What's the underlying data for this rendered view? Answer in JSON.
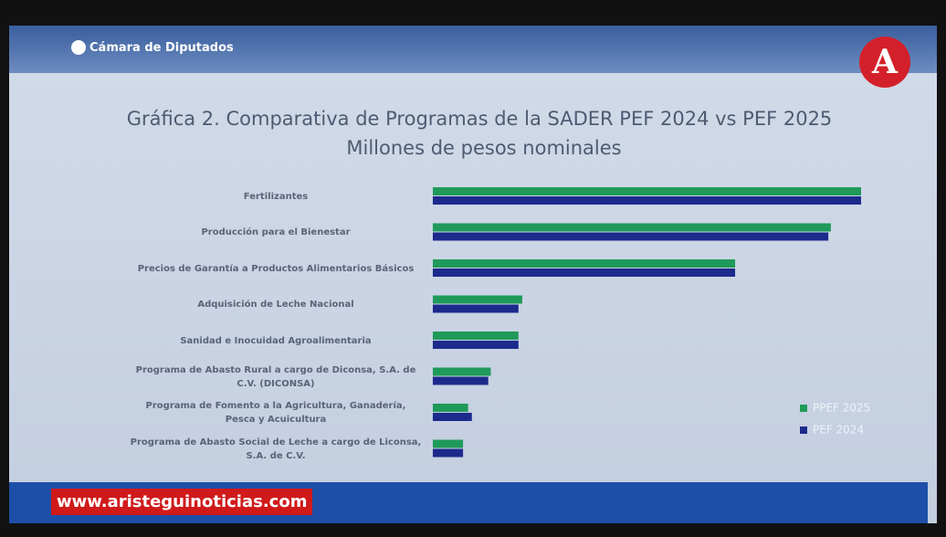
{
  "header": {
    "title": "Cámara de Diputados"
  },
  "logo": "A",
  "watermark": "www.aristeguinoticias.com",
  "chart_data": {
    "type": "bar",
    "orientation": "horizontal",
    "title": "Gráfica 2. Comparativa de Programas de la SADER PEF 2024 vs PEF 2025",
    "subtitle": "Millones de pesos nominales",
    "categories": [
      "Fertilizantes",
      "Producción para el Bienestar",
      "Precios de Garantía a Productos Alimentarios Básicos",
      "Adquisición de Leche Nacional",
      "Sanidad e Inocuidad Agroalimentaria",
      "Programa de Abasto Rural a cargo de Diconsa, S.A. de C.V. (DICONSA)",
      "Programa de Fomento a la Agricultura, Ganadería, Pesca y Acuicultura",
      "Programa de Abasto Social de Leche a cargo de Liconsa, S.A. de C.V."
    ],
    "series": [
      {
        "name": "PPEF 2025",
        "color": "#1f9a5a",
        "values": [
          17000,
          15800,
          12000,
          3550,
          3400,
          2300,
          1400,
          1200
        ]
      },
      {
        "name": "PEF 2024",
        "color": "#1c2a8c",
        "values": [
          17000,
          15700,
          12000,
          3400,
          3400,
          2200,
          1550,
          1200
        ]
      }
    ],
    "xlim": [
      0,
      17000
    ],
    "legend": "lower-right"
  }
}
